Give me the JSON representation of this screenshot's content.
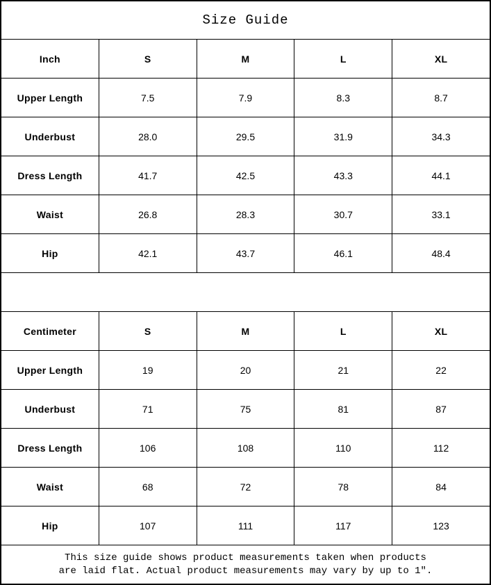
{
  "title": "Size Guide",
  "footer": {
    "line1": "This size guide shows product measurements taken when products",
    "line2": "are laid flat. Actual product measurements may vary by up to 1″."
  },
  "colors": {
    "border": "#000000",
    "background": "#ffffff",
    "text": "#000000"
  },
  "chart_data": [
    {
      "type": "table",
      "unit": "Inch",
      "columns": [
        "Inch",
        "S",
        "M",
        "L",
        "XL"
      ],
      "rows": [
        {
          "label": "Upper Length",
          "values": [
            "7.5",
            "7.9",
            "8.3",
            "8.7"
          ]
        },
        {
          "label": "Underbust",
          "values": [
            "28.0",
            "29.5",
            "31.9",
            "34.3"
          ]
        },
        {
          "label": "Dress Length",
          "values": [
            "41.7",
            "42.5",
            "43.3",
            "44.1"
          ]
        },
        {
          "label": "Waist",
          "values": [
            "26.8",
            "28.3",
            "30.7",
            "33.1"
          ]
        },
        {
          "label": "Hip",
          "values": [
            "42.1",
            "43.7",
            "46.1",
            "48.4"
          ]
        }
      ]
    },
    {
      "type": "table",
      "unit": "Centimeter",
      "columns": [
        "Centimeter",
        "S",
        "M",
        "L",
        "XL"
      ],
      "rows": [
        {
          "label": "Upper Length",
          "values": [
            "19",
            "20",
            "21",
            "22"
          ]
        },
        {
          "label": "Underbust",
          "values": [
            "71",
            "75",
            "81",
            "87"
          ]
        },
        {
          "label": "Dress Length",
          "values": [
            "106",
            "108",
            "110",
            "112"
          ]
        },
        {
          "label": "Waist",
          "values": [
            "68",
            "72",
            "78",
            "84"
          ]
        },
        {
          "label": "Hip",
          "values": [
            "107",
            "111",
            "117",
            "123"
          ]
        }
      ]
    }
  ]
}
